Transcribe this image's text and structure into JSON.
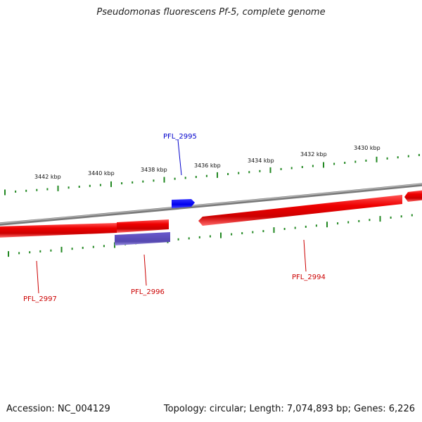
{
  "title": "Pseudomonas fluorescens Pf-5, complete genome",
  "footer": {
    "accession": "Accession: NC_004129",
    "summary": "Topology: circular; Length: 7,074,893 bp; Genes: 6,226"
  },
  "scale": {
    "unit": "kbp",
    "labels": [
      "3442 kbp",
      "3440 kbp",
      "3438 kbp",
      "3436 kbp",
      "3434 kbp",
      "3432 kbp",
      "3430 kbp"
    ]
  },
  "genes": [
    {
      "name": "PFL_2995",
      "strand": "+",
      "color": "#0000dd"
    },
    {
      "name": "PFL_2996",
      "strand": "-",
      "color": "#cc0000"
    },
    {
      "name": "PFL_2997",
      "strand": "-",
      "color": "#cc0000"
    },
    {
      "name": "PFL_2994",
      "strand": "-",
      "color": "#cc0000"
    }
  ],
  "colors": {
    "backbone": "#8a8a8a",
    "forward_gene": "#0000ee",
    "reverse_gene": "#ee0000",
    "rna_feature": "#6655bb",
    "ticks": "#228822"
  }
}
